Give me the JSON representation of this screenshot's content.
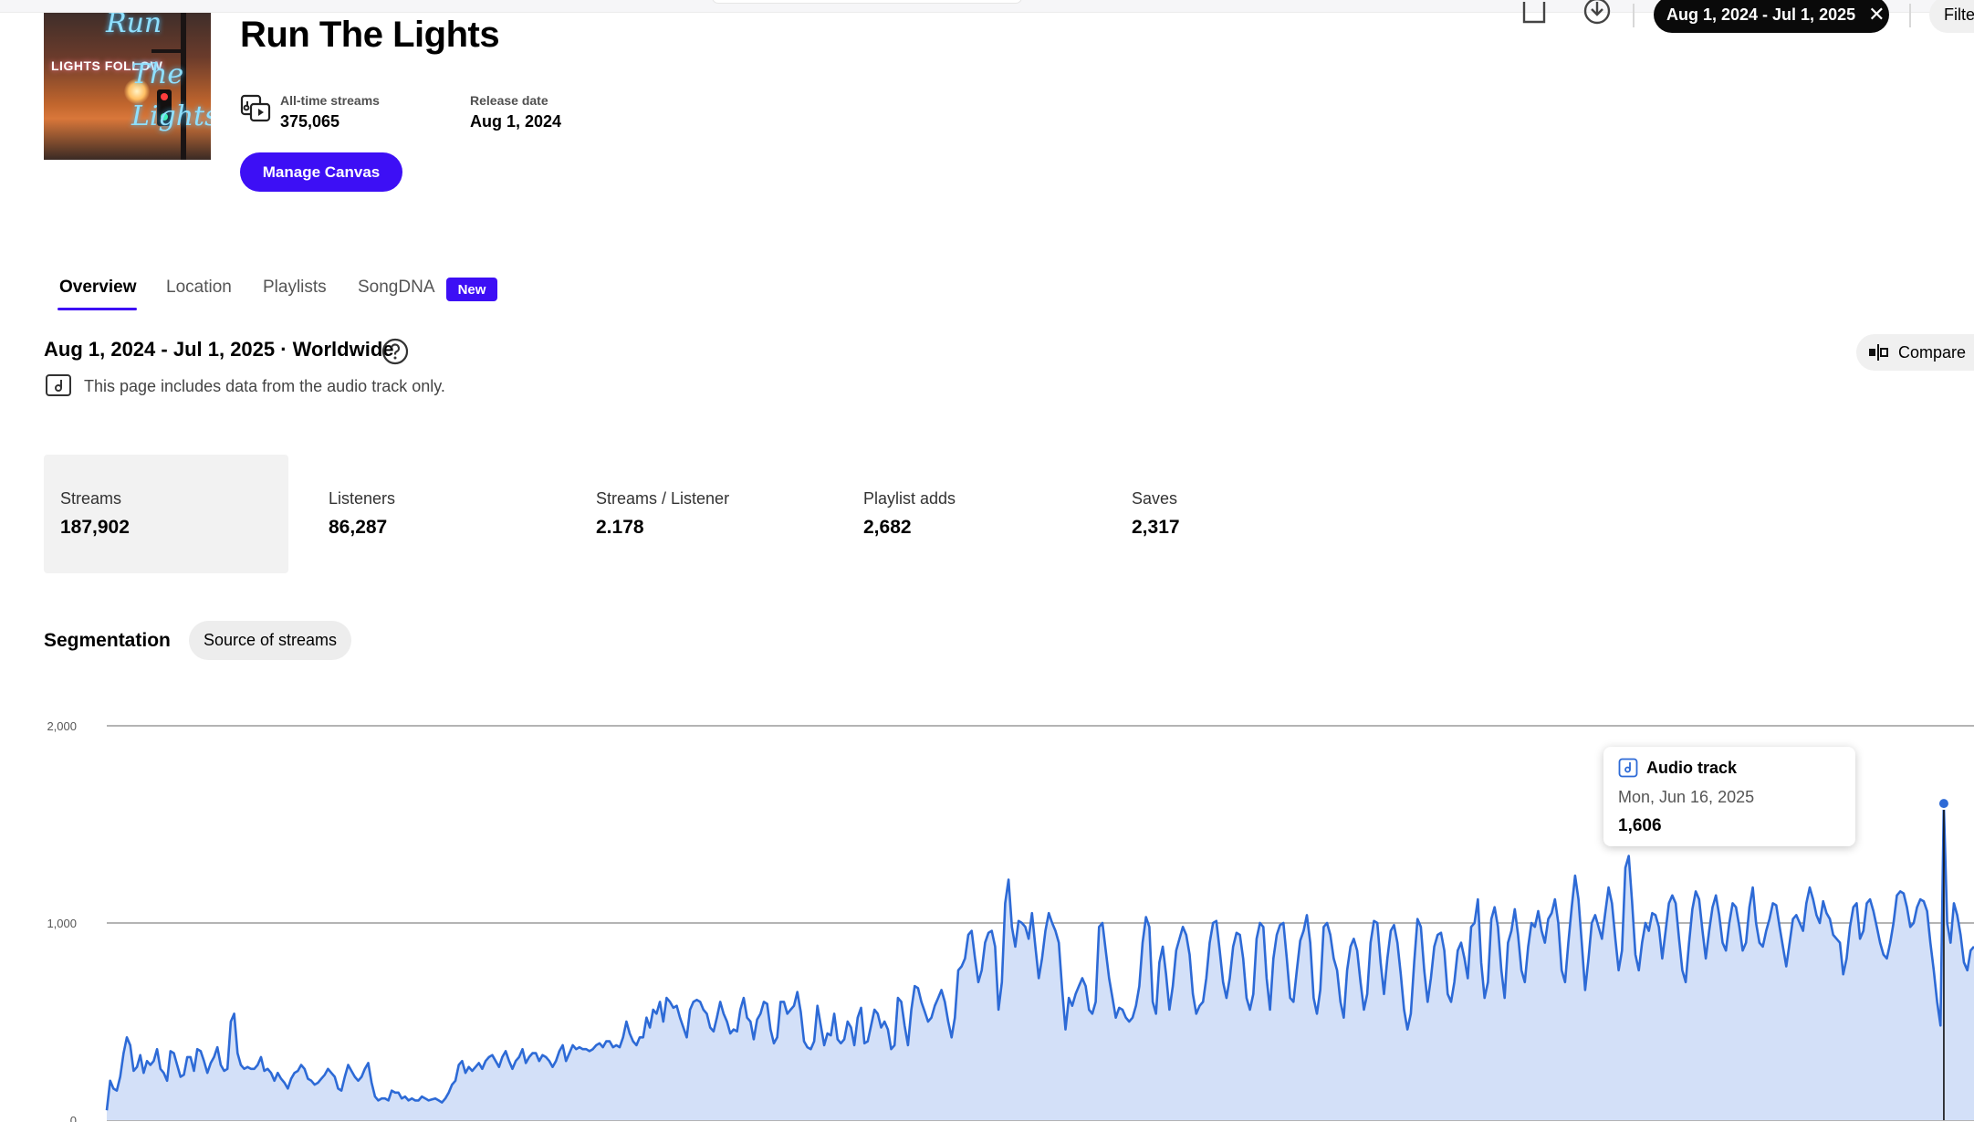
{
  "header": {
    "title": "Run The Lights",
    "all_time_streams_label": "All-time streams",
    "all_time_streams_value": "375,065",
    "release_date_label": "Release date",
    "release_date_value": "Aug 1, 2024",
    "manage_canvas_label": "Manage Canvas",
    "cover_text": "LIGHTS FOLLOW",
    "cover_script": "Run The Lights"
  },
  "toolbar": {
    "date_range_chip": "Aug 1, 2024 - Jul 1, 2025",
    "filter_label": "Filte"
  },
  "tabs": [
    {
      "label": "Overview",
      "active": true
    },
    {
      "label": "Location",
      "active": false
    },
    {
      "label": "Playlists",
      "active": false
    },
    {
      "label": "SongDNA",
      "active": false
    }
  ],
  "new_badge": "New",
  "range": {
    "title": "Aug 1, 2024 - Jul 1, 2025 · Worldwide",
    "note": "This page includes data from the audio track only.",
    "compare_label": "Compare"
  },
  "metrics": [
    {
      "label": "Streams",
      "value": "187,902",
      "selected": true
    },
    {
      "label": "Listeners",
      "value": "86,287",
      "selected": false
    },
    {
      "label": "Streams / Listener",
      "value": "2.178",
      "selected": false
    },
    {
      "label": "Playlist adds",
      "value": "2,682",
      "selected": false
    },
    {
      "label": "Saves",
      "value": "2,317",
      "selected": false
    }
  ],
  "segmentation": {
    "title": "Segmentation",
    "chip": "Source of streams"
  },
  "tooltip": {
    "series": "Audio track",
    "date": "Mon, Jun 16, 2025",
    "value": "1,606"
  },
  "colors": {
    "accent": "#3d0ff5",
    "line": "#2d6ad6",
    "area": "#d3e0f8"
  },
  "chart_data": {
    "type": "area",
    "title": "",
    "xlabel": "",
    "ylabel": "",
    "ylim": [
      0,
      2000
    ],
    "y_ticks": [
      "2,000",
      "1,000",
      "0"
    ],
    "grid": true,
    "series": [
      {
        "name": "Audio track",
        "values": [
          50,
          200,
          160,
          150,
          220,
          340,
          420,
          380,
          250,
          270,
          330,
          240,
          300,
          280,
          300,
          360,
          260,
          240,
          200,
          350,
          340,
          280,
          220,
          230,
          320,
          320,
          250,
          360,
          350,
          300,
          240,
          290,
          320,
          370,
          280,
          250,
          260,
          500,
          540,
          340,
          280,
          260,
          270,
          260,
          260,
          280,
          320,
          250,
          260,
          240,
          200,
          240,
          210,
          190,
          160,
          210,
          240,
          250,
          280,
          260,
          210,
          200,
          180,
          190,
          210,
          230,
          260,
          240,
          220,
          160,
          150,
          220,
          280,
          250,
          220,
          200,
          220,
          260,
          290,
          190,
          120,
          100,
          110,
          110,
          100,
          150,
          140,
          140,
          110,
          120,
          100,
          110,
          100,
          100,
          120,
          110,
          100,
          105,
          110,
          100,
          90,
          110,
          140,
          180,
          200,
          280,
          300,
          240,
          270,
          250,
          270,
          290,
          260,
          300,
          320,
          330,
          300,
          270,
          320,
          350,
          300,
          260,
          300,
          320,
          360,
          290,
          320,
          340,
          340,
          300,
          330,
          320,
          300,
          270,
          300,
          350,
          380,
          300,
          340,
          380,
          360,
          370,
          360,
          360,
          350,
          360,
          380,
          390,
          370,
          400,
          400,
          370,
          380,
          370,
          420,
          500,
          440,
          400,
          380,
          420,
          420,
          520,
          470,
          560,
          540,
          600,
          500,
          620,
          600,
          570,
          580,
          520,
          470,
          420,
          560,
          600,
          610,
          600,
          560,
          540,
          470,
          450,
          520,
          600,
          540,
          500,
          440,
          460,
          450,
          560,
          620,
          520,
          500,
          410,
          510,
          540,
          600,
          590,
          460,
          390,
          420,
          600,
          600,
          540,
          560,
          580,
          650,
          550,
          400,
          370,
          360,
          400,
          580,
          480,
          380,
          440,
          430,
          540,
          410,
          390,
          410,
          500,
          470,
          380,
          520,
          570,
          390,
          400,
          480,
          560,
          540,
          470,
          500,
          460,
          360,
          380,
          620,
          600,
          480,
          380,
          560,
          680,
          670,
          600,
          550,
          500,
          520,
          580,
          620,
          660,
          600,
          500,
          420,
          520,
          760,
          780,
          820,
          940,
          960,
          820,
          700,
          760,
          900,
          950,
          960,
          880,
          560,
          700,
          1100,
          1220,
          980,
          880,
          1010,
          1000,
          980,
          920,
          1050,
          880,
          720,
          820,
          960,
          1050,
          1000,
          960,
          900,
          660,
          460,
          620,
          580,
          640,
          680,
          720,
          680,
          560,
          540,
          600,
          980,
          1000,
          860,
          720,
          620,
          520,
          570,
          560,
          520,
          500,
          520,
          580,
          680,
          900,
          1030,
          980,
          600,
          540,
          800,
          880,
          740,
          560,
          680,
          860,
          920,
          980,
          940,
          840,
          640,
          540,
          580,
          600,
          720,
          900,
          1000,
          1010,
          860,
          700,
          620,
          720,
          880,
          950,
          940,
          820,
          620,
          560,
          640,
          920,
          1000,
          980,
          720,
          560,
          820,
          940,
          990,
          1000,
          820,
          620,
          600,
          760,
          910,
          960,
          1040,
          900,
          620,
          540,
          660,
          980,
          1000,
          940,
          820,
          760,
          600,
          520,
          760,
          880,
          920,
          860,
          700,
          560,
          640,
          900,
          1010,
          1000,
          800,
          640,
          820,
          960,
          990,
          900,
          740,
          560,
          460,
          540,
          800,
          1020,
          980,
          760,
          600,
          720,
          880,
          940,
          950,
          860,
          640,
          600,
          700,
          860,
          900,
          820,
          720,
          980,
          1000,
          1120,
          800,
          620,
          700,
          1020,
          1080,
          980,
          760,
          620,
          900,
          960,
          1070,
          940,
          760,
          700,
          880,
          1000,
          980,
          1060,
          960,
          900,
          1020,
          1050,
          1120,
          1000,
          760,
          700,
          900,
          1080,
          1240,
          1120,
          900,
          660,
          820,
          1000,
          1040,
          980,
          920,
          1050,
          1180,
          1100,
          920,
          760,
          860,
          1280,
          1340,
          1110,
          840,
          760,
          900,
          1000,
          960,
          1050,
          1040,
          980,
          820,
          960,
          1100,
          1140,
          1100,
          920,
          760,
          700,
          900,
          1070,
          1160,
          1120,
          960,
          820,
          960,
          1080,
          1140,
          1040,
          900,
          860,
          1000,
          1100,
          1080,
          980,
          860,
          900,
          1080,
          1180,
          1000,
          900,
          880,
          960,
          1020,
          1100,
          1090,
          980,
          880,
          780,
          900,
          1020,
          1040,
          1000,
          960,
          1100,
          1180,
          1120,
          1040,
          1000,
          1110,
          1050,
          1020,
          940,
          920,
          900,
          740,
          820,
          980,
          1080,
          1100,
          920,
          960,
          1100,
          1120,
          1060,
          980,
          900,
          840,
          820,
          900,
          1000,
          1140,
          1160,
          1150,
          1080,
          980,
          1000,
          1080,
          1120,
          1110,
          1060,
          900,
          760,
          600,
          480,
          1606,
          1000,
          900,
          1100,
          1040,
          940,
          800,
          760,
          860,
          880
        ]
      }
    ]
  }
}
